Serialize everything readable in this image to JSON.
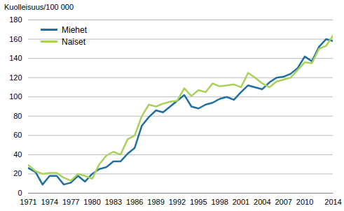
{
  "chart_data": {
    "type": "line",
    "title": "Kuolleisuus/100 000",
    "x": [
      1971,
      1972,
      1973,
      1974,
      1975,
      1976,
      1977,
      1978,
      1979,
      1980,
      1981,
      1982,
      1983,
      1984,
      1985,
      1986,
      1987,
      1988,
      1989,
      1990,
      1991,
      1992,
      1993,
      1994,
      1995,
      1996,
      1997,
      1998,
      1999,
      2000,
      2001,
      2002,
      2003,
      2004,
      2005,
      2006,
      2007,
      2008,
      2009,
      2010,
      2011,
      2012,
      2013,
      2014
    ],
    "series": [
      {
        "name": "Miehet",
        "color": "#1f6fa0",
        "values": [
          26,
          22,
          9,
          18,
          18,
          9,
          11,
          18,
          12,
          20,
          25,
          27,
          33,
          33,
          41,
          47,
          70,
          79,
          86,
          84,
          90,
          96,
          102,
          90,
          88,
          92,
          94,
          98,
          100,
          97,
          105,
          112,
          110,
          108,
          115,
          120,
          121,
          124,
          130,
          142,
          137,
          152,
          160,
          158
        ]
      },
      {
        "name": "Naiset",
        "color": "#a9d15a",
        "values": [
          29,
          23,
          20,
          21,
          21,
          16,
          13,
          20,
          18,
          15,
          30,
          39,
          43,
          40,
          56,
          60,
          80,
          92,
          90,
          93,
          95,
          96,
          109,
          101,
          107,
          105,
          114,
          111,
          112,
          113,
          110,
          125,
          120,
          114,
          110,
          116,
          118,
          120,
          128,
          136,
          135,
          150,
          153,
          164
        ]
      }
    ],
    "xlim": [
      1971,
      2014
    ],
    "xticks": [
      1971,
      1974,
      1977,
      1980,
      1983,
      1986,
      1989,
      1992,
      1995,
      1998,
      2001,
      2004,
      2007,
      2010,
      2014
    ],
    "ylim": [
      0,
      180
    ],
    "yticks": [
      0,
      20,
      40,
      60,
      80,
      100,
      120,
      140,
      160,
      180
    ],
    "grid": true,
    "legend": "top-left"
  }
}
